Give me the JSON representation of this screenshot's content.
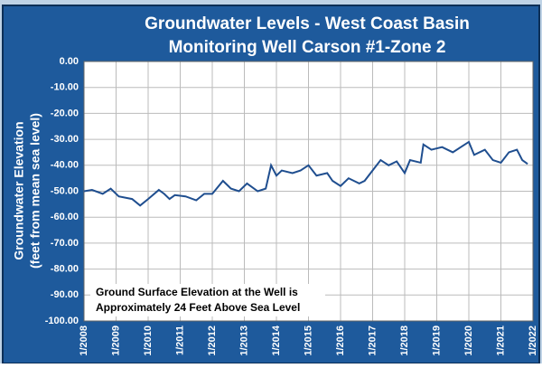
{
  "chart_data": {
    "type": "line",
    "title": [
      "Groundwater Levels - West Coast Basin",
      "Monitoring Well Carson #1-Zone 2"
    ],
    "y_label": [
      "Groundwater Elevation",
      "(feet from mean sea level)"
    ],
    "annotation": [
      "Ground Surface Elevation at the Well is",
      "Approximately 24 Feet  Above Sea Level"
    ],
    "x": [
      "2008-01",
      "2008-04",
      "2008-08",
      "2008-11",
      "2009-02",
      "2009-07",
      "2009-10",
      "2010-01",
      "2010-05",
      "2010-07",
      "2010-09",
      "2010-11",
      "2011-03",
      "2011-07",
      "2011-10",
      "2012-01",
      "2012-05",
      "2012-08",
      "2012-11",
      "2013-02",
      "2013-06",
      "2013-09",
      "2013-11",
      "2014-01",
      "2014-03",
      "2014-07",
      "2014-10",
      "2015-01",
      "2015-04",
      "2015-08",
      "2015-10",
      "2016-01",
      "2016-04",
      "2016-08",
      "2016-10",
      "2017-01",
      "2017-04",
      "2017-07",
      "2017-10",
      "2018-01",
      "2018-03",
      "2018-07",
      "2018-08",
      "2018-11",
      "2019-03",
      "2019-07",
      "2019-10",
      "2020-01",
      "2020-03",
      "2020-07",
      "2020-10",
      "2021-01",
      "2021-04",
      "2021-07",
      "2021-09",
      "2021-11"
    ],
    "series": [
      {
        "name": "Carson #1-Zone 2",
        "color": "#1f4e8f",
        "values": [
          -50,
          -49.5,
          -51,
          -49,
          -52,
          -53,
          -55.5,
          -53,
          -49.5,
          -51,
          -53,
          -51.5,
          -52,
          -53.5,
          -51,
          -51,
          -46,
          -49,
          -50,
          -47,
          -50,
          -49,
          -40,
          -44,
          -42,
          -43,
          -42,
          -40,
          -44,
          -43,
          -46,
          -48,
          -45,
          -47,
          -46,
          -42,
          -38,
          -40,
          -38.5,
          -43,
          -38,
          -39,
          -32,
          -34,
          -33,
          -35,
          -33,
          -31,
          -36,
          -34,
          -38,
          -39,
          -35,
          -34,
          -38,
          -39.5
        ]
      }
    ],
    "xlim": [
      "2008-01",
      "2022-01"
    ],
    "xticks": [
      {
        "value": "2008-01",
        "label": "1/2008"
      },
      {
        "value": "2009-01",
        "label": "1/2009"
      },
      {
        "value": "2010-01",
        "label": "1/2010"
      },
      {
        "value": "2011-01",
        "label": "1/2011"
      },
      {
        "value": "2012-01",
        "label": "1/2012"
      },
      {
        "value": "2013-01",
        "label": "1/2013"
      },
      {
        "value": "2014-01",
        "label": "1/2014"
      },
      {
        "value": "2015-01",
        "label": "1/2015"
      },
      {
        "value": "2016-01",
        "label": "1/2016"
      },
      {
        "value": "2017-01",
        "label": "1/2017"
      },
      {
        "value": "2018-01",
        "label": "1/2018"
      },
      {
        "value": "2019-01",
        "label": "1/2019"
      },
      {
        "value": "2020-01",
        "label": "1/2020"
      },
      {
        "value": "2021-01",
        "label": "1/2021"
      },
      {
        "value": "2022-01",
        "label": "1/2022"
      }
    ],
    "ylim": [
      -100,
      0
    ],
    "yticks": [
      {
        "value": 0,
        "label": "0.00"
      },
      {
        "value": -10,
        "label": "-10.00"
      },
      {
        "value": -20,
        "label": "-20.00"
      },
      {
        "value": -30,
        "label": "-30.00"
      },
      {
        "value": -40,
        "label": "-40.00"
      },
      {
        "value": -50,
        "label": "-50.00"
      },
      {
        "value": -60,
        "label": "-60.00"
      },
      {
        "value": -70,
        "label": "-70.00"
      },
      {
        "value": -80,
        "label": "-80.00"
      },
      {
        "value": -90,
        "label": "-90.00"
      },
      {
        "value": -100,
        "label": "-100.00"
      }
    ],
    "grid": true
  }
}
